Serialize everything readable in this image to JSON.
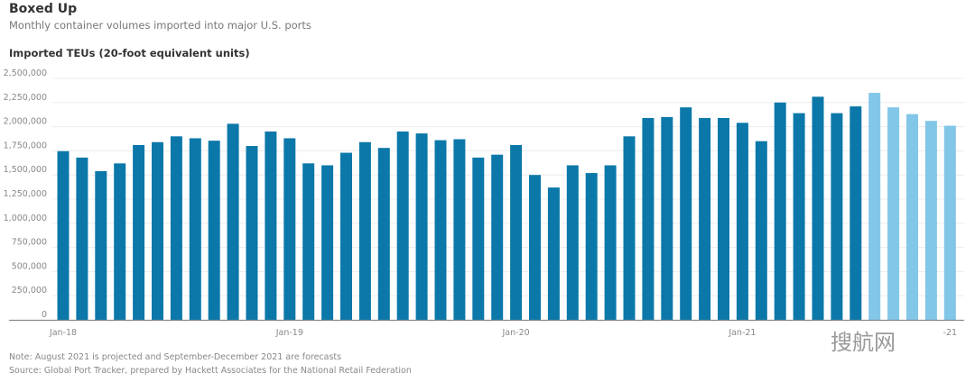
{
  "chart_data": {
    "type": "bar",
    "title": "Boxed Up",
    "subtitle": "Monthly container volumes imported into major U.S. ports",
    "ylabel": "Imported TEUs (20-foot equivalent units)",
    "xlabel": "",
    "ylim": [
      0,
      2500000
    ],
    "yticks": [
      "0",
      "250,000",
      "500,000",
      "750,000",
      "1,000,000",
      "1,250,000",
      "1,500,000",
      "1,750,000",
      "2,000,000",
      "2,250,000",
      "2,500,000"
    ],
    "xtick_labels": [
      {
        "month": "Jan-18",
        "label": "Jan-18"
      },
      {
        "month": "Jan-19",
        "label": "Jan-19"
      },
      {
        "month": "Jan-20",
        "label": "Jan-20"
      },
      {
        "month": "Jan-21",
        "label": "Jan-21"
      },
      {
        "month": "Dec-21",
        "label": "-21"
      }
    ],
    "grid": true,
    "categories": [
      "Jan-18",
      "Feb-18",
      "Mar-18",
      "Apr-18",
      "May-18",
      "Jun-18",
      "Jul-18",
      "Aug-18",
      "Sep-18",
      "Oct-18",
      "Nov-18",
      "Dec-18",
      "Jan-19",
      "Feb-19",
      "Mar-19",
      "Apr-19",
      "May-19",
      "Jun-19",
      "Jul-19",
      "Aug-19",
      "Sep-19",
      "Oct-19",
      "Nov-19",
      "Dec-19",
      "Jan-20",
      "Feb-20",
      "Mar-20",
      "Apr-20",
      "May-20",
      "Jun-20",
      "Jul-20",
      "Aug-20",
      "Sep-20",
      "Oct-20",
      "Nov-20",
      "Dec-20",
      "Jan-21",
      "Feb-21",
      "Mar-21",
      "Apr-21",
      "May-21",
      "Jun-21",
      "Jul-21",
      "Aug-21",
      "Sep-21",
      "Oct-21",
      "Nov-21",
      "Dec-21"
    ],
    "values": [
      1746000,
      1680000,
      1540000,
      1620000,
      1810000,
      1840000,
      1900000,
      1880000,
      1855000,
      2030000,
      1800000,
      1950000,
      1880000,
      1620000,
      1600000,
      1730000,
      1840000,
      1780000,
      1950000,
      1930000,
      1860000,
      1870000,
      1680000,
      1710000,
      1810000,
      1500000,
      1370000,
      1600000,
      1520000,
      1600000,
      1900000,
      2090000,
      2100000,
      2200000,
      2090000,
      2090000,
      2040000,
      1850000,
      2250000,
      2140000,
      2310000,
      2140000,
      2210000,
      2350000,
      2200000,
      2130000,
      2060000,
      2010000
    ],
    "status": [
      "actual",
      "actual",
      "actual",
      "actual",
      "actual",
      "actual",
      "actual",
      "actual",
      "actual",
      "actual",
      "actual",
      "actual",
      "actual",
      "actual",
      "actual",
      "actual",
      "actual",
      "actual",
      "actual",
      "actual",
      "actual",
      "actual",
      "actual",
      "actual",
      "actual",
      "actual",
      "actual",
      "actual",
      "actual",
      "actual",
      "actual",
      "actual",
      "actual",
      "actual",
      "actual",
      "actual",
      "actual",
      "actual",
      "actual",
      "actual",
      "actual",
      "actual",
      "actual",
      "projected",
      "forecast",
      "forecast",
      "forecast",
      "forecast"
    ],
    "colors": {
      "actual": "#0b78a9",
      "projected": "#82c6e8",
      "forecast": "#82c6e8",
      "grid": "#ececec",
      "axis": "#888888"
    }
  },
  "notes": {
    "note": "Note: August 2021 is projected and September-December 2021 are forecasts",
    "source": "Source: Global Port Tracker, prepared by Hackett Associates for the National Retail Federation"
  },
  "watermark": "搜航网"
}
